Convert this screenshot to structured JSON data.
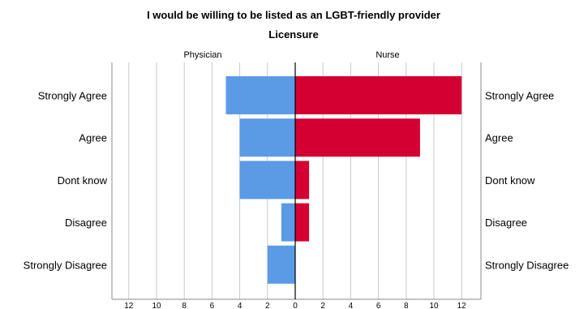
{
  "chart_data": {
    "type": "bar",
    "orientation": "horizontal",
    "layout": "back-to-back population pyramid",
    "title": "I would be willing to be listed as an LGBT-friendly provider",
    "subtitle": "Licensure",
    "categories": [
      "Strongly Agree",
      "Agree",
      "Dont know",
      "Disagree",
      "Strongly Disagree"
    ],
    "series": [
      {
        "name": "Physician",
        "color": "#5B9BE6",
        "values": [
          5,
          4,
          4,
          1,
          2
        ]
      },
      {
        "name": "Nurse",
        "color": "#D50032",
        "values": [
          12,
          9,
          1,
          1,
          0
        ]
      }
    ],
    "xlim": [
      0,
      12
    ],
    "ticks": [
      "12",
      "10",
      "8",
      "6",
      "4",
      "2",
      "0",
      "2",
      "4",
      "6",
      "8",
      "10",
      "12"
    ],
    "grid": true
  }
}
